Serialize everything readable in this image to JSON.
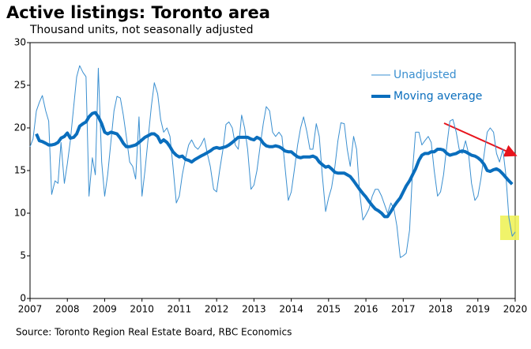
{
  "chart_data": {
    "type": "line",
    "title": "Active listings: Toronto area",
    "subtitle": "Thousand units, not seasonally adjusted",
    "source": "Source: Toronto Region Real Estate Board, RBC Economics",
    "x": [
      2007,
      2007.08,
      2007.17,
      2007.25,
      2007.33,
      2007.42,
      2007.5,
      2007.58,
      2007.67,
      2007.75,
      2007.83,
      2007.92,
      2008,
      2008.08,
      2008.17,
      2008.25,
      2008.33,
      2008.42,
      2008.5,
      2008.58,
      2008.67,
      2008.75,
      2008.83,
      2008.92,
      2009,
      2009.08,
      2009.17,
      2009.25,
      2009.33,
      2009.42,
      2009.5,
      2009.58,
      2009.67,
      2009.75,
      2009.83,
      2009.92,
      2010,
      2010.08,
      2010.17,
      2010.25,
      2010.33,
      2010.42,
      2010.5,
      2010.58,
      2010.67,
      2010.75,
      2010.83,
      2010.92,
      2011,
      2011.08,
      2011.17,
      2011.25,
      2011.33,
      2011.42,
      2011.5,
      2011.58,
      2011.67,
      2011.75,
      2011.83,
      2011.92,
      2012,
      2012.08,
      2012.17,
      2012.25,
      2012.33,
      2012.42,
      2012.5,
      2012.58,
      2012.67,
      2012.75,
      2012.83,
      2012.92,
      2013,
      2013.08,
      2013.17,
      2013.25,
      2013.33,
      2013.42,
      2013.5,
      2013.58,
      2013.67,
      2013.75,
      2013.83,
      2013.92,
      2014,
      2014.08,
      2014.17,
      2014.25,
      2014.33,
      2014.42,
      2014.5,
      2014.58,
      2014.67,
      2014.75,
      2014.83,
      2014.92,
      2015,
      2015.08,
      2015.17,
      2015.25,
      2015.33,
      2015.42,
      2015.5,
      2015.58,
      2015.67,
      2015.75,
      2015.83,
      2015.92,
      2016,
      2016.08,
      2016.17,
      2016.25,
      2016.33,
      2016.42,
      2016.5,
      2016.58,
      2016.67,
      2016.75,
      2016.83,
      2016.92,
      2017,
      2017.08,
      2017.17,
      2017.25,
      2017.33,
      2017.42,
      2017.5,
      2017.58,
      2017.67,
      2017.75,
      2017.83,
      2017.92,
      2018,
      2018.08,
      2018.17,
      2018.25,
      2018.33,
      2018.42,
      2018.5,
      2018.58,
      2018.67,
      2018.75,
      2018.83,
      2018.92,
      2019,
      2019.08,
      2019.17,
      2019.25,
      2019.33,
      2019.42,
      2019.5,
      2019.58,
      2019.67,
      2019.75,
      2019.83,
      2019.92,
      2020
    ],
    "series": [
      {
        "name": "Unadjusted",
        "color": "#3a8fd0",
        "width": 1,
        "values": [
          17.8,
          18.7,
          22.0,
          23.0,
          23.8,
          22.0,
          20.8,
          12.2,
          13.8,
          13.5,
          18.3,
          13.5,
          15.8,
          18.5,
          22.5,
          26.0,
          27.3,
          26.5,
          26.0,
          12.0,
          16.5,
          14.5,
          27.0,
          16.0,
          12.0,
          14.5,
          18.5,
          22.0,
          23.7,
          23.5,
          21.5,
          19.0,
          16.0,
          15.5,
          14.0,
          21.3,
          12.0,
          15.0,
          19.0,
          22.5,
          25.3,
          24.0,
          21.0,
          19.5,
          20.0,
          19.0,
          15.5,
          11.2,
          12.0,
          14.5,
          16.5,
          18.0,
          18.6,
          17.8,
          17.5,
          18.0,
          18.8,
          17.0,
          15.5,
          12.8,
          12.5,
          15.0,
          17.5,
          20.4,
          20.7,
          20.0,
          18.0,
          17.5,
          21.5,
          20.0,
          17.5,
          12.8,
          13.3,
          15.0,
          18.0,
          20.5,
          22.5,
          22.0,
          19.5,
          19.0,
          19.5,
          19.0,
          15.5,
          11.5,
          12.5,
          15.0,
          18.0,
          20.0,
          21.3,
          19.5,
          17.5,
          17.5,
          20.5,
          19.0,
          14.5,
          10.2,
          11.8,
          13.0,
          15.5,
          18.5,
          20.6,
          20.5,
          17.5,
          15.5,
          19.0,
          17.5,
          12.5,
          9.2,
          9.8,
          10.5,
          12.0,
          12.8,
          12.8,
          12.0,
          11.0,
          10.0,
          11.2,
          10.5,
          8.5,
          4.8,
          5.0,
          5.3,
          8.0,
          15.0,
          19.5,
          19.5,
          18.0,
          18.5,
          19.0,
          18.3,
          15.0,
          12.0,
          12.5,
          14.5,
          18.0,
          20.8,
          21.0,
          19.5,
          17.5,
          17.0,
          18.5,
          17.0,
          13.5,
          11.5,
          12.0,
          14.0,
          17.0,
          19.5,
          20.0,
          19.5,
          17.0,
          16.0,
          17.5,
          14.5,
          9.5,
          7.3,
          7.8
        ]
      },
      {
        "name": "Moving average",
        "color": "#0a6ebd",
        "width": 4,
        "values": [
          null,
          null,
          19.3,
          18.5,
          18.4,
          18.2,
          18.0,
          18.0,
          18.1,
          18.3,
          18.8,
          19.0,
          19.4,
          18.8,
          18.9,
          19.3,
          20.2,
          20.5,
          20.7,
          21.3,
          21.7,
          21.8,
          21.3,
          20.5,
          19.5,
          19.3,
          19.5,
          19.4,
          19.3,
          18.8,
          18.2,
          17.8,
          17.8,
          17.9,
          18.0,
          18.3,
          18.6,
          18.9,
          19.1,
          19.3,
          19.3,
          19.0,
          18.3,
          18.6,
          18.3,
          17.8,
          17.2,
          16.8,
          16.6,
          16.7,
          16.3,
          16.2,
          16.0,
          16.3,
          16.5,
          16.7,
          16.9,
          17.1,
          17.3,
          17.6,
          17.7,
          17.6,
          17.7,
          17.8,
          18.0,
          18.3,
          18.6,
          18.9,
          18.9,
          18.9,
          18.9,
          18.7,
          18.6,
          18.9,
          18.7,
          18.2,
          17.9,
          17.8,
          17.8,
          17.9,
          17.8,
          17.6,
          17.3,
          17.2,
          17.2,
          16.9,
          16.6,
          16.5,
          16.6,
          16.6,
          16.6,
          16.7,
          16.5,
          16.0,
          15.7,
          15.4,
          15.5,
          15.2,
          14.8,
          14.7,
          14.7,
          14.7,
          14.5,
          14.3,
          13.8,
          13.3,
          12.8,
          12.3,
          11.9,
          11.4,
          10.9,
          10.5,
          10.3,
          10.0,
          9.6,
          9.6,
          10.2,
          10.8,
          11.3,
          11.8,
          12.5,
          13.2,
          13.8,
          14.5,
          15.2,
          16.2,
          16.8,
          17.0,
          17.0,
          17.2,
          17.2,
          17.5,
          17.5,
          17.4,
          17.0,
          16.8,
          16.9,
          17.0,
          17.2,
          17.3,
          17.2,
          17.0,
          16.8,
          16.7,
          16.5,
          16.2,
          15.7,
          15.0,
          14.9,
          15.1,
          15.2,
          15.0,
          14.6,
          14.2,
          13.8,
          13.4,
          null
        ]
      }
    ],
    "xlim": [
      2007,
      2020
    ],
    "xticks": [
      2007,
      2008,
      2009,
      2010,
      2011,
      2012,
      2013,
      2014,
      2015,
      2016,
      2017,
      2018,
      2019,
      2020
    ],
    "ylim": [
      0,
      30
    ],
    "yticks": [
      0,
      5,
      10,
      15,
      20,
      25,
      30
    ],
    "grid": false,
    "legend": "upper right"
  }
}
